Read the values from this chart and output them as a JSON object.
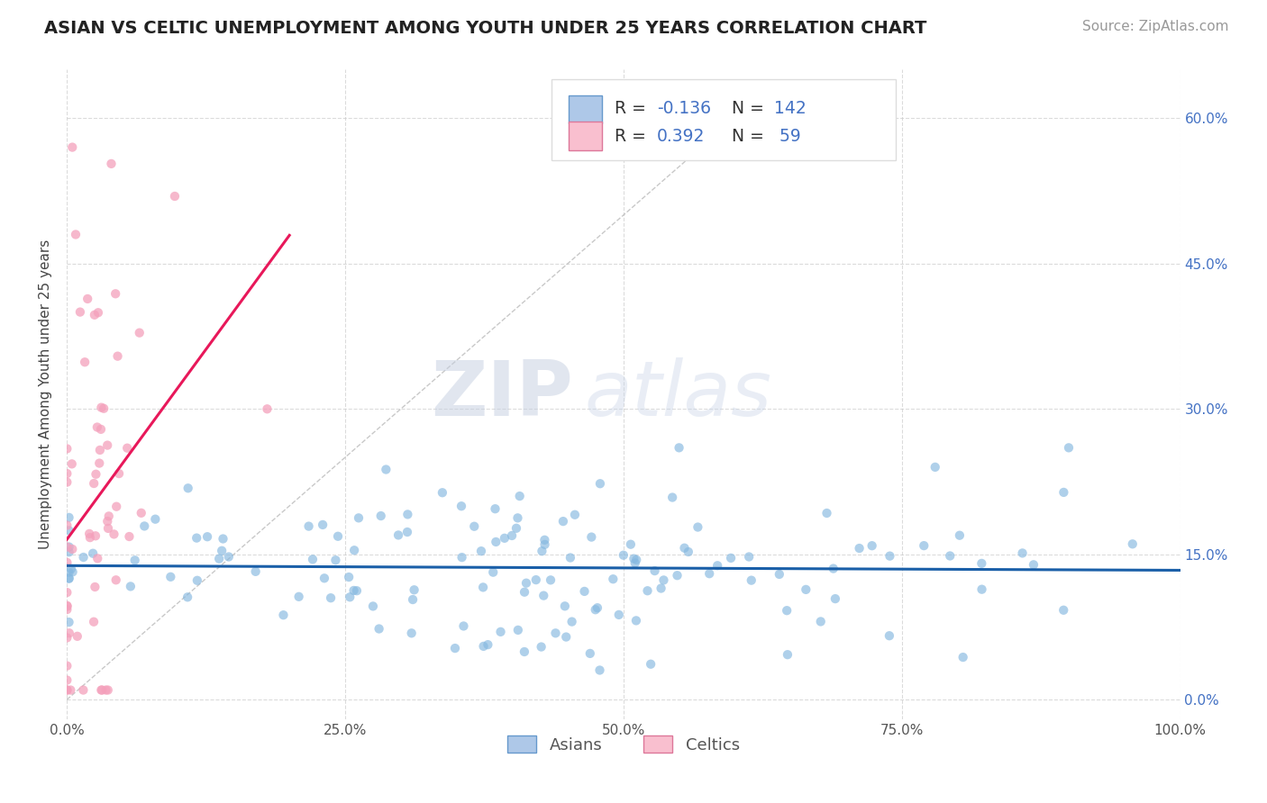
{
  "title": "ASIAN VS CELTIC UNEMPLOYMENT AMONG YOUTH UNDER 25 YEARS CORRELATION CHART",
  "source_text": "Source: ZipAtlas.com",
  "ylabel": "Unemployment Among Youth under 25 years",
  "xlim": [
    0.0,
    1.0
  ],
  "ylim": [
    -0.02,
    0.65
  ],
  "x_ticks": [
    0.0,
    0.25,
    0.5,
    0.75,
    1.0
  ],
  "x_tick_labels": [
    "0.0%",
    "25.0%",
    "50.0%",
    "75.0%",
    "100.0%"
  ],
  "y_ticks": [
    0.0,
    0.15,
    0.3,
    0.45,
    0.6
  ],
  "y_tick_labels": [
    "0.0%",
    "15.0%",
    "30.0%",
    "45.0%",
    "60.0%"
  ],
  "asian_color": "#85b8e0",
  "celtic_color": "#f4a0bb",
  "asian_line_color": "#1a5fa8",
  "celtic_line_color": "#e8185a",
  "trendline_dash_color": "#bbbbbb",
  "R_asian": -0.136,
  "N_asian": 142,
  "R_celtic": 0.392,
  "N_celtic": 59,
  "legend_labels": [
    "Asians",
    "Celtics"
  ],
  "watermark_zip": "ZIP",
  "watermark_atlas": "atlas",
  "background_color": "#ffffff",
  "grid_color": "#cccccc",
  "title_fontsize": 14,
  "axis_label_fontsize": 11,
  "tick_fontsize": 11,
  "legend_fontsize": 13,
  "source_fontsize": 11,
  "blue_text_color": "#4472C4",
  "legend_R_color": "#4472C4",
  "legend_N_color": "#4472C4"
}
